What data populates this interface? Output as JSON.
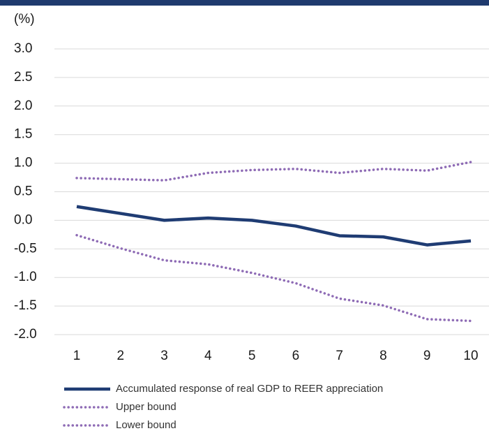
{
  "chart_data": {
    "type": "line",
    "y_label": "(%)",
    "categories": [
      "1",
      "2",
      "3",
      "4",
      "5",
      "6",
      "7",
      "8",
      "9",
      "10"
    ],
    "series": [
      {
        "name": "Accumulated response of real GDP to REER appreciation",
        "color": "#1f3c73",
        "style": "solid",
        "values": [
          0.24,
          0.12,
          0.0,
          0.04,
          0.0,
          -0.1,
          -0.27,
          -0.29,
          -0.43,
          -0.36
        ]
      },
      {
        "name": "Upper bound",
        "color": "#8e6bb5",
        "style": "dotted",
        "values": [
          0.74,
          0.72,
          0.7,
          0.83,
          0.88,
          0.9,
          0.83,
          0.9,
          0.87,
          1.02
        ]
      },
      {
        "name": "Lower bound",
        "color": "#8e6bb5",
        "style": "dotted",
        "values": [
          -0.26,
          -0.49,
          -0.7,
          -0.77,
          -0.92,
          -1.1,
          -1.37,
          -1.49,
          -1.73,
          -1.76
        ]
      }
    ],
    "ylim": [
      -2,
      3
    ],
    "yticks": [
      {
        "value": 3,
        "label": "3.0"
      },
      2.5,
      {
        "value": 2,
        "label": "2.0"
      },
      1.5,
      {
        "value": 1,
        "label": "1.0"
      },
      0.5,
      {
        "value": 0,
        "label": "0.0"
      },
      -0.5,
      {
        "value": -1,
        "label": "-1.0"
      },
      -1.5,
      {
        "value": -2,
        "label": "-2.0"
      }
    ],
    "grid": true,
    "legend": "bottom"
  }
}
